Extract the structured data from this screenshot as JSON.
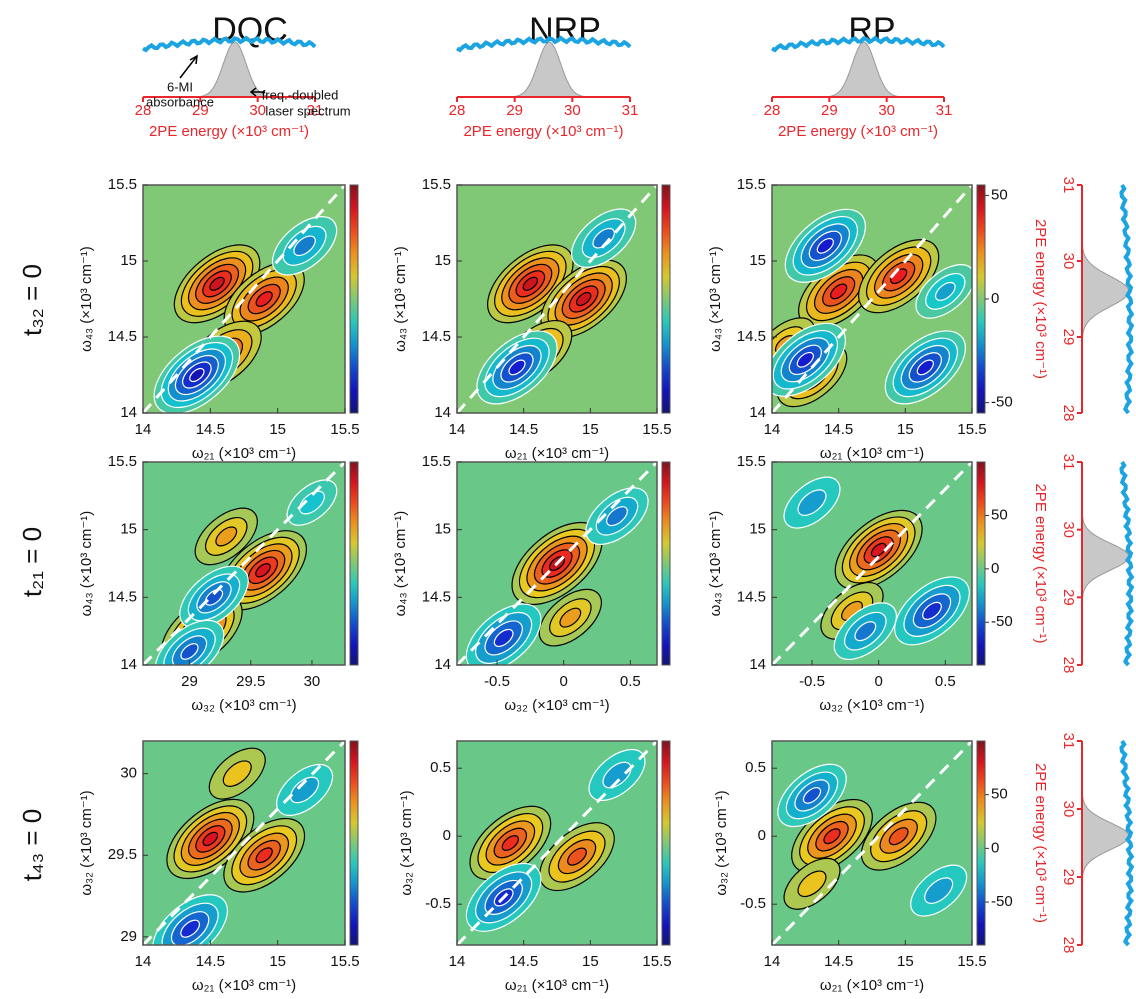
{
  "columns": [
    "DQC",
    "NRP",
    "RP"
  ],
  "rows": [
    "t₃₂ = 0",
    "t₂₁ = 0",
    "t₄₃ = 0"
  ],
  "top_spectra": [
    {
      "xlabel": "2PE energy (×10³ cm⁻¹)",
      "xlim": [
        28,
        31
      ],
      "xticks": [
        28,
        29,
        30,
        31
      ],
      "laser_peak": 29.6
    },
    {
      "xlabel": "2PE energy (×10³ cm⁻¹)",
      "xlim": [
        28,
        31
      ],
      "xticks": [
        28,
        29,
        30,
        31
      ],
      "laser_peak": 29.6
    },
    {
      "xlabel": "2PE energy (×10³ cm⁻¹)",
      "xlim": [
        28,
        31
      ],
      "xticks": [
        28,
        29,
        30,
        31
      ],
      "laser_peak": 29.6
    }
  ],
  "annotations": {
    "absorbance": [
      "6-MI",
      "absorbance"
    ],
    "laser": [
      "freq.-doubled",
      "laser spectrum"
    ]
  },
  "side_spectra": [
    {
      "label": "2PE energy (×10³ cm⁻¹)",
      "ylim": [
        28,
        31
      ],
      "yticks": [
        28,
        29,
        30,
        31
      ],
      "laser_peak": 29.6
    },
    {
      "label": "2PE energy (×10³ cm⁻¹)",
      "ylim": [
        28,
        31
      ],
      "yticks": [
        28,
        29,
        30,
        31
      ],
      "laser_peak": 29.6
    },
    {
      "label": "2PE energy (×10³ cm⁻¹)",
      "ylim": [
        28,
        31
      ],
      "yticks": [
        28,
        29,
        30,
        31
      ],
      "laser_peak": 29.6
    }
  ],
  "panels": [
    {
      "xlabel": "ω₂₁ (×10³ cm⁻¹)",
      "ylabel": "ω₄₃ (×10³ cm⁻¹)",
      "xlim": [
        14,
        15.5
      ],
      "ylim": [
        14,
        15.5
      ],
      "xticks": [
        14,
        14.5,
        15,
        15.5
      ],
      "yticks": [
        14,
        14.5,
        15,
        15.5
      ],
      "clim": [
        -55,
        55
      ],
      "peaks": [
        [
          14.55,
          14.85,
          45
        ],
        [
          14.9,
          14.75,
          40
        ],
        [
          14.6,
          14.38,
          35
        ],
        [
          14.4,
          14.25,
          -45
        ],
        [
          15.2,
          15.1,
          -25
        ]
      ]
    },
    {
      "xlabel": "ω₂₁ (×10³ cm⁻¹)",
      "ylabel": "ω₄₃ (×10³ cm⁻¹)",
      "xlim": [
        14,
        15.5
      ],
      "ylim": [
        14,
        15.5
      ],
      "xticks": [
        14,
        14.5,
        15,
        15.5
      ],
      "yticks": [
        14,
        14.5,
        15,
        15.5
      ],
      "clim": [
        -55,
        55
      ],
      "peaks": [
        [
          14.55,
          14.85,
          45
        ],
        [
          14.95,
          14.75,
          45
        ],
        [
          14.6,
          14.4,
          30
        ],
        [
          14.45,
          14.3,
          -40
        ],
        [
          15.1,
          15.15,
          -25
        ]
      ]
    },
    {
      "xlabel": "ω₂₁ (×10³ cm⁻¹)",
      "ylabel": "ω₄₃ (×10³ cm⁻¹)",
      "xlim": [
        14,
        15.5
      ],
      "ylim": [
        14,
        15.5
      ],
      "xticks": [
        14,
        14.5,
        15,
        15.5
      ],
      "yticks": [
        14,
        14.5,
        15,
        15.5
      ],
      "clim": [
        -55,
        55
      ],
      "cticks": [
        -50,
        0,
        50
      ],
      "peaks": [
        [
          14.5,
          14.8,
          40
        ],
        [
          14.95,
          14.9,
          40
        ],
        [
          14.3,
          14.25,
          30
        ],
        [
          14.1,
          14.45,
          20
        ],
        [
          14.4,
          15.1,
          -40
        ],
        [
          14.25,
          14.35,
          -40
        ],
        [
          15.15,
          14.3,
          -40
        ],
        [
          15.3,
          14.8,
          -20
        ]
      ]
    },
    {
      "xlabel": "ω₃₂ (×10³ cm⁻¹)",
      "ylabel": "ω₄₃ (×10³ cm⁻¹)",
      "xlim": [
        28.62,
        30.27
      ],
      "ylim": [
        14,
        15.5
      ],
      "xticks": [
        29,
        29.5,
        30
      ],
      "yticks": [
        14,
        14.5,
        15,
        15.5
      ],
      "clim": [
        -90,
        100
      ],
      "peaks": [
        [
          29.6,
          14.7,
          80
        ],
        [
          29.1,
          14.25,
          70
        ],
        [
          29.2,
          14.5,
          -50
        ],
        [
          29,
          14.1,
          -50
        ],
        [
          29.3,
          14.95,
          40
        ],
        [
          30,
          15.2,
          -20
        ]
      ]
    },
    {
      "xlabel": "ω₃₂ (×10³ cm⁻¹)",
      "ylabel": "ω₄₃ (×10³ cm⁻¹)",
      "xlim": [
        -0.8,
        0.7
      ],
      "ylim": [
        14,
        15.5
      ],
      "xticks": [
        -0.5,
        0,
        0.5
      ],
      "yticks": [
        14,
        14.5,
        15,
        15.5
      ],
      "clim": [
        -90,
        100
      ],
      "peaks": [
        [
          -0.05,
          14.75,
          85
        ],
        [
          0.05,
          14.35,
          40
        ],
        [
          -0.45,
          14.2,
          -60
        ],
        [
          0.4,
          15.1,
          -40
        ]
      ]
    },
    {
      "xlabel": "ω₃₂ (×10³ cm⁻¹)",
      "ylabel": "ω₄₃ (×10³ cm⁻¹)",
      "xlim": [
        -0.8,
        0.7
      ],
      "ylim": [
        14,
        15.5
      ],
      "xticks": [
        -0.5,
        0,
        0.5
      ],
      "yticks": [
        14,
        14.5,
        15,
        15.5
      ],
      "clim": [
        -90,
        100
      ],
      "cticks": [
        -50,
        0,
        50
      ],
      "peaks": [
        [
          0,
          14.85,
          80
        ],
        [
          -0.2,
          14.4,
          40
        ],
        [
          0.4,
          14.4,
          -60
        ],
        [
          -0.1,
          14.25,
          -40
        ],
        [
          -0.5,
          15.2,
          -30
        ]
      ]
    },
    {
      "xlabel": "ω₂₁ (×10³ cm⁻¹)",
      "ylabel": "ω₃₂ (×10³ cm⁻¹)",
      "xlim": [
        14,
        15.5
      ],
      "ylim": [
        28.95,
        30.2
      ],
      "xticks": [
        14,
        14.5,
        15,
        15.5
      ],
      "yticks": [
        29,
        29.5,
        30
      ],
      "clim": [
        -90,
        100
      ],
      "peaks": [
        [
          14.5,
          29.6,
          80
        ],
        [
          14.9,
          29.5,
          70
        ],
        [
          14.35,
          29.05,
          -60
        ],
        [
          15.2,
          29.9,
          -30
        ],
        [
          14.7,
          30,
          30
        ]
      ]
    },
    {
      "xlabel": "ω₂₁ (×10³ cm⁻¹)",
      "ylabel": "ω₃₂ (×10³ cm⁻¹)",
      "xlim": [
        14,
        15.5
      ],
      "ylim": [
        -0.8,
        0.7
      ],
      "xticks": [
        14,
        14.5,
        15,
        15.5
      ],
      "yticks": [
        -0.5,
        0,
        0.5
      ],
      "clim": [
        -90,
        100
      ],
      "peaks": [
        [
          14.4,
          -0.05,
          70
        ],
        [
          14.9,
          -0.15,
          60
        ],
        [
          14.35,
          -0.45,
          -60
        ],
        [
          15.2,
          0.45,
          -30
        ]
      ]
    },
    {
      "xlabel": "ω₂₁ (×10³ cm⁻¹)",
      "ylabel": "ω₃₂ (×10³ cm⁻¹)",
      "xlim": [
        14,
        15.5
      ],
      "ylim": [
        -0.8,
        0.7
      ],
      "xticks": [
        14,
        14.5,
        15,
        15.5
      ],
      "yticks": [
        -0.5,
        0,
        0.5
      ],
      "clim": [
        -90,
        100
      ],
      "cticks": [
        -50,
        0,
        50
      ],
      "peaks": [
        [
          14.45,
          0,
          70
        ],
        [
          14.95,
          0,
          60
        ],
        [
          14.3,
          0.3,
          -50
        ],
        [
          15.25,
          -0.4,
          -30
        ],
        [
          14.3,
          -0.35,
          30
        ]
      ]
    }
  ]
}
